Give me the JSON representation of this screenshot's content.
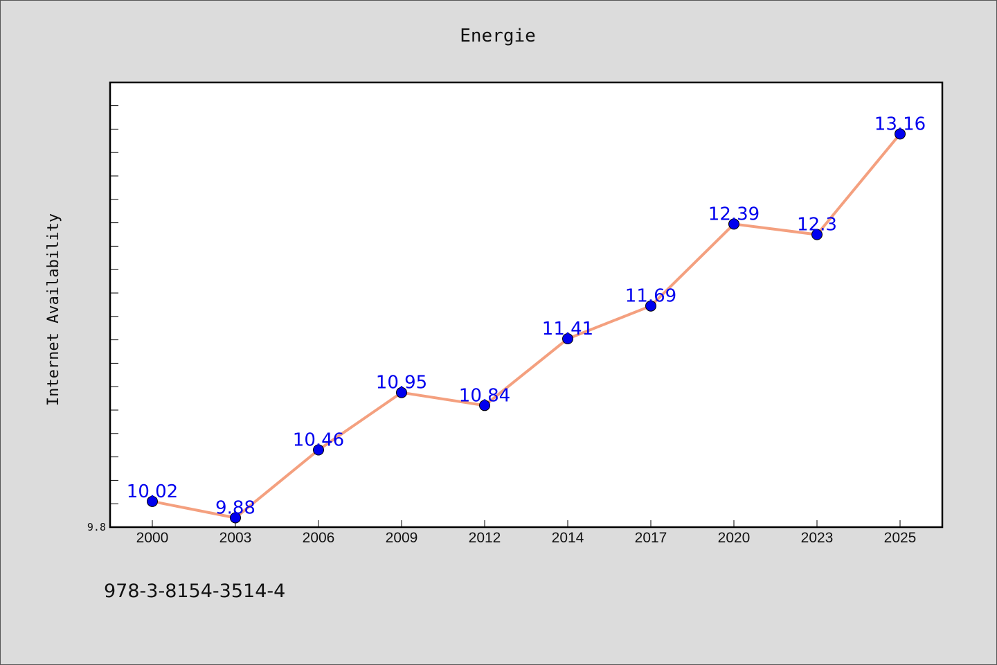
{
  "chart_data": {
    "type": "line",
    "title": "Energie",
    "xlabel": "",
    "ylabel": "Internet Availability",
    "categories": [
      "2000",
      "2003",
      "2006",
      "2009",
      "2012",
      "2014",
      "2017",
      "2020",
      "2023",
      "2025"
    ],
    "series": [
      {
        "values": [
          10.02,
          9.88,
          10.46,
          10.95,
          10.84,
          11.41,
          11.69,
          12.39,
          12.3,
          13.16
        ],
        "labels": [
          "10.02",
          "9.88",
          "10.46",
          "10.95",
          "10.84",
          "11.41",
          "11.69",
          "12.39",
          "12.3",
          "13.16"
        ],
        "line_color": "#f4a07f",
        "marker_color": "#0000ee",
        "label_color": "#0000ee"
      }
    ],
    "ylim": [
      9.8,
      13.6
    ],
    "y_ticks_labeled": [
      "9.8"
    ],
    "grid": false,
    "legend": "none"
  },
  "caption": "978-3-8154-3514-4"
}
